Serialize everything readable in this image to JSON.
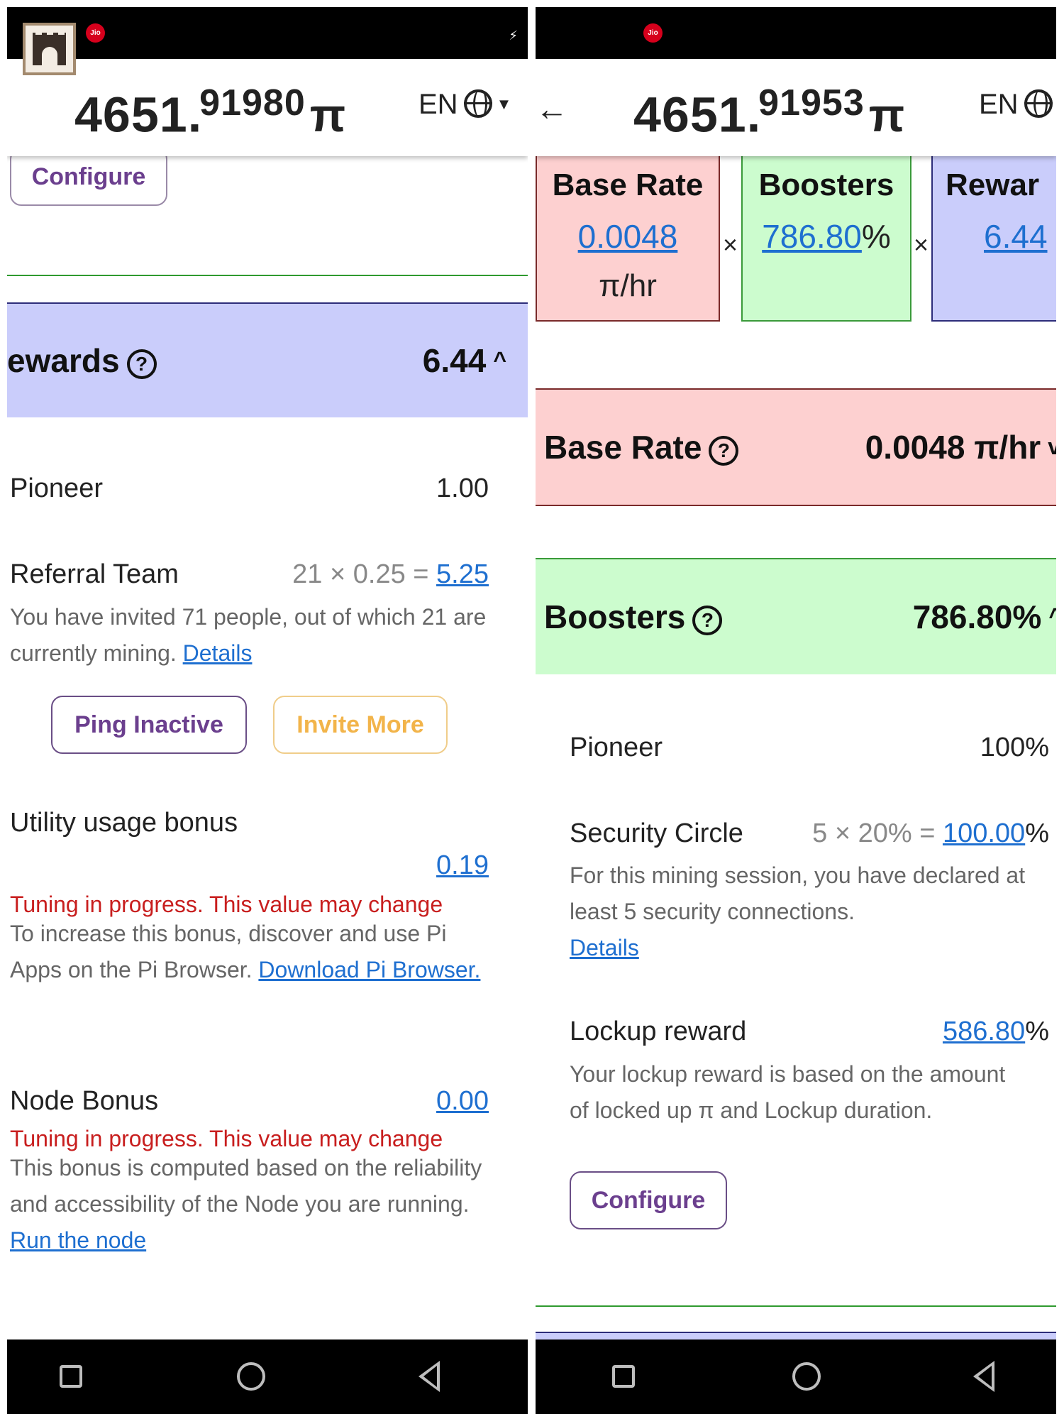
{
  "status_bar": {
    "carrier_badge": "Jio"
  },
  "app_icon": "castle-app-icon",
  "left": {
    "balance": {
      "integer": "4651.",
      "decimal": "91980",
      "symbol": "π"
    },
    "language": "EN",
    "configure_button": "Configure",
    "rewards_section": {
      "title": "ewards",
      "value": "6.44"
    },
    "pioneer": {
      "label": "Pioneer",
      "value": "1.00"
    },
    "referral_team": {
      "label": "Referral Team",
      "formula": "21 × 0.25 =",
      "result": "5.25",
      "description": "You have invited 71 people, out of which 21 are currently mining.",
      "details_link": "Details"
    },
    "ping_inactive_button": "Ping Inactive",
    "invite_more_button": "Invite More",
    "utility_bonus": {
      "label": "Utility usage bonus",
      "value": "0.19",
      "warning": "Tuning in progress. This value may change",
      "description": "To increase this bonus, discover and use Pi Apps on the Pi Browser.",
      "download_link": "Download Pi Browser."
    },
    "node_bonus": {
      "label": "Node Bonus",
      "value": "0.00",
      "warning": "Tuning in progress. This value may change",
      "description": "This bonus is computed based on the reliability and accessibility of the Node you are running.",
      "run_link": "Run the node"
    }
  },
  "right": {
    "balance": {
      "integer": "4651.",
      "decimal": "91953",
      "symbol": "π"
    },
    "language": "EN",
    "calc": {
      "base_rate_title": "Base Rate",
      "base_rate_value": "0.0048",
      "base_rate_unit": "π/hr",
      "times": "×",
      "boosters_title": "Boosters",
      "boosters_value": "786.80",
      "boosters_unit": "%",
      "rewards_title": "Rewar",
      "rewards_value": "6.44"
    },
    "base_rate_section": {
      "title": "Base Rate",
      "value": "0.0048 π/hr"
    },
    "boosters_section": {
      "title": "Boosters",
      "value": "786.80%"
    },
    "pioneer": {
      "label": "Pioneer",
      "value": "100%"
    },
    "security_circle": {
      "label": "Security Circle",
      "formula": "5 × 20% =",
      "result": "100.00",
      "result_unit": "%",
      "description": "For this mining session, you have declared at least 5 security connections.",
      "details_link": "Details"
    },
    "lockup_reward": {
      "label": "Lockup reward",
      "value": "586.80",
      "value_unit": "%",
      "description": "Your lockup reward is based on the amount of locked up π and Lockup duration."
    },
    "configure_button": "Configure"
  },
  "colors": {
    "rewards_bg": "#cacdfb",
    "base_rate_bg": "#fdd0d0",
    "boosters_bg": "#ccfcce",
    "link": "#1e6fd0",
    "warning": "#c81e1e",
    "button_purple": "#6b3f8e",
    "button_gold": "#f2b44a"
  }
}
